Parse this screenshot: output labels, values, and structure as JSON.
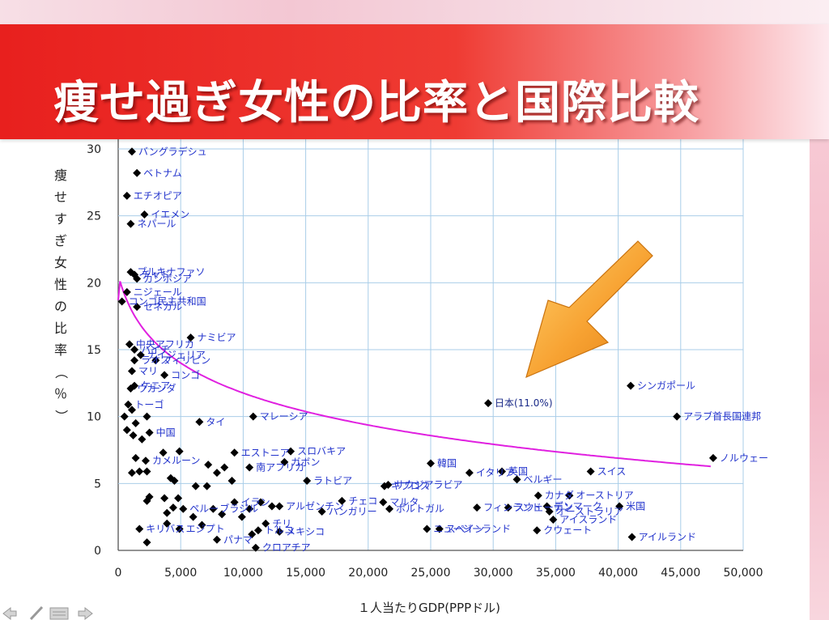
{
  "slide": {
    "title": "痩せ過ぎ女性の比率と国際比較"
  },
  "colors": {
    "title_bar": "#e8201e",
    "point": "#000000",
    "label": "#2233cc",
    "trend": "#e020e0",
    "grid": "#a9cde8",
    "arrow": "#f5a030"
  },
  "nav": {
    "icons": [
      "back-arrow-icon",
      "pen-icon",
      "slide-menu-icon",
      "forward-arrow-icon"
    ]
  },
  "chart_data": {
    "type": "scatter",
    "xlabel": "１人当たりGDP(PPPドル)",
    "ylabel": "痩せすぎ女性の比率（％）",
    "xlim": [
      0,
      50000
    ],
    "ylim": [
      0,
      30
    ],
    "xticks": [
      "0",
      "5,000",
      "10,000",
      "15,000",
      "20,000",
      "25,000",
      "30,000",
      "35,000",
      "40,000",
      "45,000",
      "50,000"
    ],
    "yticks": [
      "0",
      "5",
      "10",
      "15",
      "20",
      "25",
      "30"
    ],
    "grid": true,
    "trend": {
      "type": "logarithmic",
      "from_x": 0,
      "to_x": 47500,
      "color": "#e020e0"
    },
    "annotation": {
      "text": "arrow pointing to 日本(11.0%)",
      "target": "日本(11.0%)"
    },
    "points": [
      {
        "label": "バングラデシュ",
        "x": 1100,
        "y": 29.8
      },
      {
        "label": "ベトナム",
        "x": 1500,
        "y": 28.2
      },
      {
        "label": "エチオピア",
        "x": 700,
        "y": 26.5
      },
      {
        "label": "イエメン",
        "x": 2100,
        "y": 25.1
      },
      {
        "label": "ネパール",
        "x": 1000,
        "y": 24.4
      },
      {
        "label": "ブルキナファソ",
        "x": 1000,
        "y": 20.8
      },
      {
        "label": "チャド",
        "x": 1300,
        "y": 20.6
      },
      {
        "label": "カンボジア",
        "x": 1500,
        "y": 20.3
      },
      {
        "label": "ニジェール",
        "x": 700,
        "y": 19.3
      },
      {
        "label": "コンゴ民主共和国",
        "x": 300,
        "y": 18.6
      },
      {
        "label": "セネガル",
        "x": 1500,
        "y": 18.2
      },
      {
        "label": "ナミビア",
        "x": 5800,
        "y": 15.9
      },
      {
        "label": "中央アフリカ",
        "x": 900,
        "y": 15.4
      },
      {
        "label": "ハイチ",
        "x": 1300,
        "y": 15.0
      },
      {
        "label": "ナイジェリア",
        "x": 1800,
        "y": 14.6
      },
      {
        "label": "ラオス",
        "x": 1300,
        "y": 14.2
      },
      {
        "label": "フィリピン",
        "x": 3000,
        "y": 14.2
      },
      {
        "label": "マリ",
        "x": 1100,
        "y": 13.4
      },
      {
        "label": "コンゴ",
        "x": 3700,
        "y": 13.1
      },
      {
        "label": "ウガンダ",
        "x": 1000,
        "y": 12.1
      },
      {
        "label": "ケニア",
        "x": 1300,
        "y": 12.3
      },
      {
        "label": "トーゴ",
        "x": 800,
        "y": 10.9
      },
      {
        "label": "マレーシア",
        "x": 10800,
        "y": 10.0
      },
      {
        "label": "タイ",
        "x": 6500,
        "y": 9.6
      },
      {
        "label": "中国",
        "x": 2500,
        "y": 8.8
      },
      {
        "label": "エストニア",
        "x": 9300,
        "y": 7.3
      },
      {
        "label": "スロバキア",
        "x": 13800,
        "y": 7.4
      },
      {
        "label": "カメルーン",
        "x": 2200,
        "y": 6.7
      },
      {
        "label": "南アフリカ",
        "x": 10500,
        "y": 6.2
      },
      {
        "label": "ガボン",
        "x": 13300,
        "y": 6.6
      },
      {
        "label": "キプロス",
        "x": 21300,
        "y": 4.8
      },
      {
        "label": "韓国",
        "x": 25000,
        "y": 6.5
      },
      {
        "label": "イタリア",
        "x": 28100,
        "y": 5.8
      },
      {
        "label": "英国",
        "x": 30700,
        "y": 5.9
      },
      {
        "label": "ベルギー",
        "x": 31900,
        "y": 5.3
      },
      {
        "label": "スイス",
        "x": 37800,
        "y": 5.9
      },
      {
        "label": "ラトビア",
        "x": 15100,
        "y": 5.2
      },
      {
        "label": "サウジアラビア",
        "x": 21600,
        "y": 4.9
      },
      {
        "label": "カナダ",
        "x": 33600,
        "y": 4.1
      },
      {
        "label": "オーストリア",
        "x": 36100,
        "y": 4.1
      },
      {
        "label": "イラン",
        "x": 9300,
        "y": 3.6
      },
      {
        "label": "アルゼンチン",
        "x": 12900,
        "y": 3.3
      },
      {
        "label": "チェコ",
        "x": 17900,
        "y": 3.7
      },
      {
        "label": "マルタ",
        "x": 21200,
        "y": 3.6
      },
      {
        "label": "フィンランド",
        "x": 28700,
        "y": 3.2
      },
      {
        "label": "スウェーデン",
        "x": 31200,
        "y": 3.2
      },
      {
        "label": "デンマーク",
        "x": 34300,
        "y": 3.3
      },
      {
        "label": "米国",
        "x": 40100,
        "y": 3.3
      },
      {
        "label": "ペルー",
        "x": 5200,
        "y": 3.1
      },
      {
        "label": "ブラジル",
        "x": 7600,
        "y": 3.1
      },
      {
        "label": "ハンガリー",
        "x": 16300,
        "y": 2.9
      },
      {
        "label": "オーストラリア",
        "x": 34500,
        "y": 2.9
      },
      {
        "label": "チリ",
        "x": 11800,
        "y": 2.0
      },
      {
        "label": "トルコ",
        "x": 11200,
        "y": 1.5
      },
      {
        "label": "ポルトガル",
        "x": 21700,
        "y": 3.1
      },
      {
        "label": "スペイン",
        "x": 25700,
        "y": 1.6
      },
      {
        "label": "アイスランド",
        "x": 34800,
        "y": 2.3
      },
      {
        "label": "キリバス",
        "x": 1700,
        "y": 1.6
      },
      {
        "label": "パナマ",
        "x": 7900,
        "y": 0.8
      },
      {
        "label": "メキシコ",
        "x": 12900,
        "y": 1.4
      },
      {
        "label": "エジプト",
        "x": 4900,
        "y": 1.6
      },
      {
        "label": "クウェート",
        "x": 33500,
        "y": 1.5
      },
      {
        "label": "ニュージーランド",
        "x": 24700,
        "y": 1.6
      },
      {
        "label": "アイルランド",
        "x": 41100,
        "y": 1.0
      },
      {
        "label": "クロアチア",
        "x": 11000,
        "y": 0.2
      },
      {
        "label": "日本(11.0%)",
        "x": 29600,
        "y": 11.0
      },
      {
        "label": "シンガポール",
        "x": 41000,
        "y": 12.3
      },
      {
        "label": "アラブ首長国連邦",
        "x": 44700,
        "y": 10.0
      },
      {
        "label": "ノルウェー",
        "x": 47600,
        "y": 6.9
      },
      {
        "x": 500,
        "y": 10.0
      },
      {
        "x": 1100,
        "y": 10.5
      },
      {
        "x": 1400,
        "y": 9.5
      },
      {
        "x": 700,
        "y": 9.0
      },
      {
        "x": 1200,
        "y": 8.6
      },
      {
        "x": 1900,
        "y": 8.3
      },
      {
        "x": 2300,
        "y": 10.0
      },
      {
        "x": 1400,
        "y": 6.9
      },
      {
        "x": 1100,
        "y": 5.8
      },
      {
        "x": 1700,
        "y": 5.9
      },
      {
        "x": 2300,
        "y": 5.9
      },
      {
        "x": 3600,
        "y": 7.3
      },
      {
        "x": 4900,
        "y": 7.4
      },
      {
        "x": 4200,
        "y": 5.4
      },
      {
        "x": 4500,
        "y": 5.2
      },
      {
        "x": 6200,
        "y": 4.8
      },
      {
        "x": 7200,
        "y": 6.4
      },
      {
        "x": 7900,
        "y": 5.8
      },
      {
        "x": 8500,
        "y": 6.2
      },
      {
        "x": 9100,
        "y": 5.2
      },
      {
        "x": 7100,
        "y": 4.8
      },
      {
        "x": 2500,
        "y": 4.0
      },
      {
        "x": 3700,
        "y": 3.9
      },
      {
        "x": 4800,
        "y": 3.9
      },
      {
        "x": 2300,
        "y": 3.7
      },
      {
        "x": 3900,
        "y": 2.8
      },
      {
        "x": 4400,
        "y": 3.2
      },
      {
        "x": 3900,
        "y": 2.0
      },
      {
        "x": 6000,
        "y": 2.5
      },
      {
        "x": 2300,
        "y": 0.6
      },
      {
        "x": 6700,
        "y": 1.9
      },
      {
        "x": 10500,
        "y": 3.1
      },
      {
        "x": 11400,
        "y": 3.6
      },
      {
        "x": 10700,
        "y": 1.2
      },
      {
        "x": 8300,
        "y": 2.7
      },
      {
        "x": 12300,
        "y": 3.3
      },
      {
        "x": 9900,
        "y": 2.5
      }
    ]
  }
}
